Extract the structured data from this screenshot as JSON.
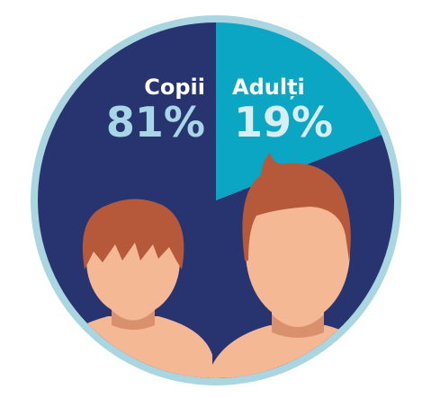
{
  "chart_data": {
    "type": "pie",
    "categories": [
      "Copii",
      "Adulți"
    ],
    "values": [
      81,
      19
    ],
    "value_labels": [
      "81%",
      "19%"
    ],
    "colors": [
      "#283470",
      "#0aa6c4"
    ],
    "label_colors": [
      "#a9d6e6",
      "#d8eef2"
    ],
    "border_color": "#a9d6e0"
  }
}
